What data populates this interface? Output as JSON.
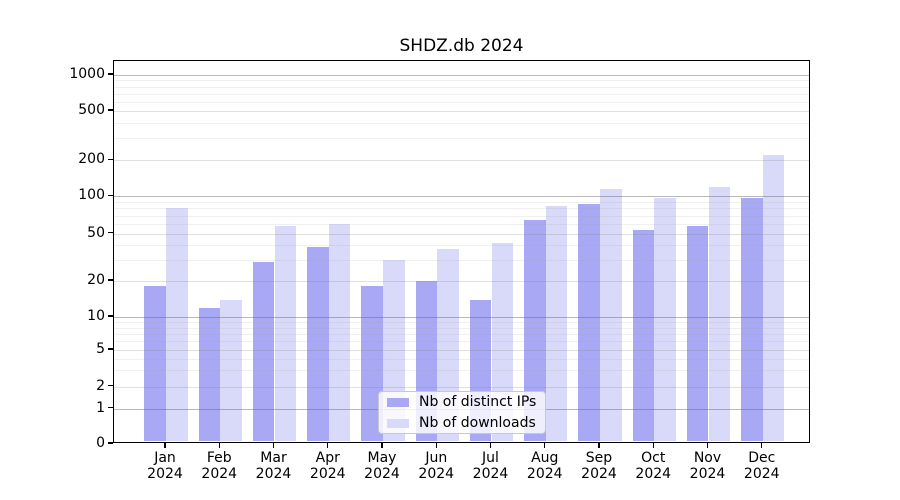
{
  "title": "SHDZ.db 2024",
  "chart_data": {
    "type": "bar",
    "title": "SHDZ.db 2024",
    "categories": [
      "Jan",
      "Feb",
      "Mar",
      "Apr",
      "May",
      "Jun",
      "Jul",
      "Aug",
      "Sep",
      "Oct",
      "Nov",
      "Dec"
    ],
    "year_label": "2024",
    "series": [
      {
        "name": "Nb of distinct IPs",
        "color": "#a8a8f4",
        "values": [
          18,
          12,
          29,
          39,
          18,
          20,
          14,
          65,
          87,
          54,
          58,
          97
        ]
      },
      {
        "name": "Nb of downloads",
        "color": "#d9d9f9",
        "values": [
          80,
          14,
          58,
          60,
          30,
          37,
          42,
          84,
          114,
          97,
          119,
          220
        ]
      }
    ],
    "yscale": "symlog",
    "yticks": [
      0,
      1,
      2,
      5,
      10,
      20,
      50,
      100,
      200,
      500,
      1000
    ],
    "ylim": [
      0,
      1150
    ],
    "grid": true,
    "legend_position": "lower center"
  }
}
